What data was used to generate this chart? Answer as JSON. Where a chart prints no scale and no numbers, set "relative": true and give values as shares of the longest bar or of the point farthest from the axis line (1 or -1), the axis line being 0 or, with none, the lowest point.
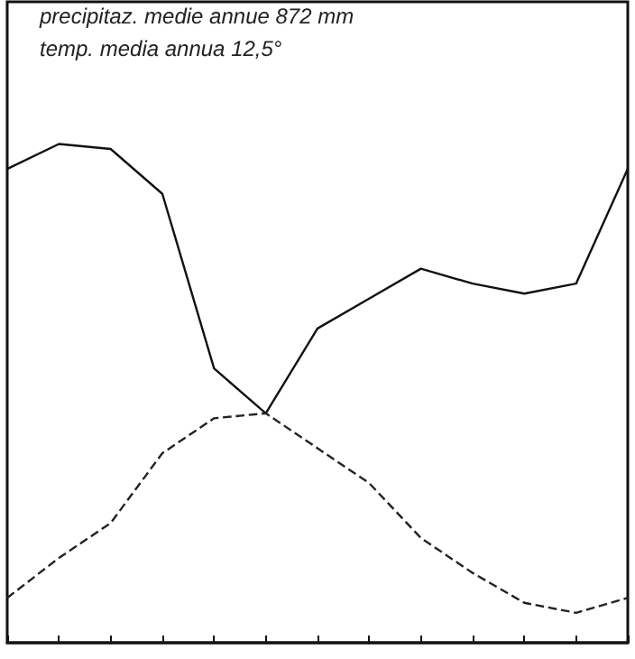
{
  "chart_data": {
    "type": "line",
    "relative": true,
    "categories": [
      null,
      null,
      null,
      null,
      null,
      null,
      null,
      null,
      null,
      null,
      null,
      null,
      null
    ],
    "series": [
      {
        "color": "#111111",
        "line_style": "solid",
        "values": [
          0.95,
          1,
          0.99,
          0.9,
          0.55,
          0.46,
          0.63,
          0.69,
          0.75,
          0.72,
          0.7,
          0.72,
          0.95
        ]
      },
      {
        "color": "#222222",
        "line_style": "dashed",
        "values": [
          0.09,
          0.17,
          0.24,
          0.38,
          0.45,
          0.46,
          0.39,
          0.32,
          0.21,
          0.14,
          0.08,
          0.06,
          0.09
        ]
      }
    ],
    "annotations": [
      "precipitaz. medie annue 872 mm",
      "temp. media annua 12,5°"
    ],
    "marker": "none",
    "grid": false
  }
}
